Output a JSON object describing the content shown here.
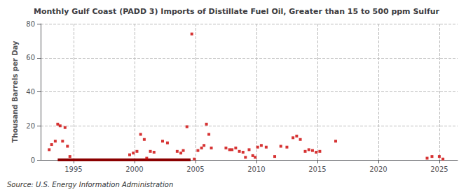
{
  "chart_data": {
    "type": "scatter",
    "title": "Monthly Gulf Coast (PADD 3) Imports of Distillate Fuel Oil, Greater than 15 to 500 ppm Sulfur",
    "ylabel": "Thousand Barrels per Day",
    "annotation": "Source: U.S. Energy Information Administration",
    "xlim": [
      1992.3,
      2026.5
    ],
    "xticks": [
      1995,
      2000,
      2005,
      2010,
      2015,
      2020,
      2025
    ],
    "ylim": [
      0,
      80
    ],
    "yticks": [
      0,
      20,
      40,
      60,
      80
    ],
    "grid": true,
    "series": [
      {
        "type": "scatter",
        "color": "#cc0000",
        "marker": "square",
        "x": [
          1993.0,
          1993.2,
          1993.5,
          1993.7,
          1993.9,
          1994.1,
          1994.3,
          1994.5,
          1994.7,
          1999.6,
          1999.9,
          2000.2,
          2000.5,
          2000.8,
          2001.0,
          2001.3,
          2001.6,
          2002.3,
          2002.7,
          2003.5,
          2003.8,
          2004.0,
          2004.3,
          2004.7,
          2004.9,
          2005.2,
          2005.5,
          2005.7,
          2005.9,
          2006.1,
          2006.3,
          2007.5,
          2007.8,
          2008.0,
          2008.3,
          2008.6,
          2008.9,
          2009.1,
          2009.4,
          2009.7,
          2009.9,
          2010.1,
          2010.4,
          2010.8,
          2011.5,
          2012.0,
          2012.5,
          2013.0,
          2013.3,
          2013.6,
          2014.0,
          2014.3,
          2014.6,
          2014.9,
          2015.2,
          2016.5,
          2024.0,
          2024.4,
          2025.0,
          2025.3
        ],
        "values": [
          6.0,
          9.0,
          11.0,
          21.0,
          20.0,
          11.0,
          19.0,
          8.0,
          2.0,
          3.0,
          4.0,
          5.0,
          15.0,
          12.0,
          1.0,
          5.0,
          4.5,
          11.0,
          10.0,
          5.0,
          4.0,
          5.5,
          19.5,
          74.0,
          0.5,
          5.5,
          7.0,
          8.5,
          21.0,
          15.0,
          7.0,
          7.0,
          6.0,
          6.0,
          7.0,
          5.0,
          4.5,
          1.5,
          6.0,
          2.5,
          1.5,
          7.5,
          8.5,
          7.5,
          2.0,
          8.0,
          7.5,
          13.0,
          14.0,
          12.0,
          5.0,
          6.0,
          5.5,
          4.5,
          5.0,
          11.0,
          1.0,
          2.0,
          2.0,
          0.5
        ]
      },
      {
        "type": "line",
        "color": "#8b0000",
        "x": [
          1993.7,
          2004.6
        ],
        "values": [
          0,
          0
        ]
      }
    ]
  }
}
